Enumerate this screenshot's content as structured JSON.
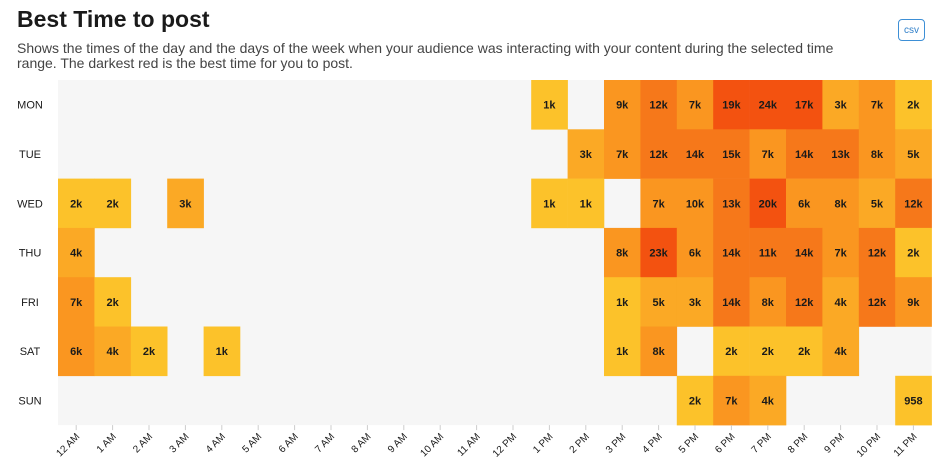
{
  "header": {
    "title": "Best Time to post",
    "subtitle": "Shows the times of the day and the days of the week when your audience was interacting with your content during the selected time range. The darkest red is the best time for you to post.",
    "csv_label": "csv"
  },
  "chart_data": {
    "type": "heatmap",
    "title": "Best Time to post",
    "rows": [
      "MON",
      "TUE",
      "WED",
      "THU",
      "FRI",
      "SAT",
      "SUN"
    ],
    "columns": [
      "12 AM",
      "1 AM",
      "2 AM",
      "3 AM",
      "4 AM",
      "5 AM",
      "6 AM",
      "7 AM",
      "8 AM",
      "9 AM",
      "10 AM",
      "11 AM",
      "12 PM",
      "1 PM",
      "2 PM",
      "3 PM",
      "4 PM",
      "5 PM",
      "6 PM",
      "7 PM",
      "8 PM",
      "9 PM",
      "10 PM",
      "11 PM"
    ],
    "cells": [
      [
        null,
        null,
        null,
        null,
        null,
        null,
        null,
        null,
        null,
        null,
        null,
        null,
        null,
        "1k",
        null,
        "9k",
        "12k",
        "7k",
        "19k",
        "24k",
        "17k",
        "3k",
        "7k",
        "2k"
      ],
      [
        null,
        null,
        null,
        null,
        null,
        null,
        null,
        null,
        null,
        null,
        null,
        null,
        null,
        null,
        "3k",
        "7k",
        "12k",
        "14k",
        "15k",
        "7k",
        "14k",
        "13k",
        "8k",
        "5k"
      ],
      [
        "2k",
        "2k",
        null,
        "3k",
        null,
        null,
        null,
        null,
        null,
        null,
        null,
        null,
        null,
        "1k",
        "1k",
        null,
        "7k",
        "10k",
        "13k",
        "20k",
        "6k",
        "8k",
        "5k",
        "12k"
      ],
      [
        "4k",
        null,
        null,
        null,
        null,
        null,
        null,
        null,
        null,
        null,
        null,
        null,
        null,
        null,
        null,
        "8k",
        "23k",
        "6k",
        "14k",
        "11k",
        "14k",
        "7k",
        "12k",
        "2k"
      ],
      [
        "7k",
        "2k",
        null,
        null,
        null,
        null,
        null,
        null,
        null,
        null,
        null,
        null,
        null,
        null,
        null,
        "1k",
        "5k",
        "3k",
        "14k",
        "8k",
        "12k",
        "4k",
        "12k",
        "9k"
      ],
      [
        "6k",
        "4k",
        "2k",
        null,
        "1k",
        null,
        null,
        null,
        null,
        null,
        null,
        null,
        null,
        null,
        null,
        "1k",
        "8k",
        null,
        "2k",
        "2k",
        "2k",
        "4k",
        null,
        null
      ],
      [
        null,
        null,
        null,
        null,
        null,
        null,
        null,
        null,
        null,
        null,
        null,
        null,
        null,
        null,
        null,
        null,
        null,
        "2k",
        "7k",
        "4k",
        null,
        null,
        null,
        "958"
      ]
    ],
    "values": [
      [
        null,
        null,
        null,
        null,
        null,
        null,
        null,
        null,
        null,
        null,
        null,
        null,
        null,
        1000,
        null,
        9000,
        12000,
        7000,
        19000,
        24000,
        17000,
        3000,
        7000,
        2000
      ],
      [
        null,
        null,
        null,
        null,
        null,
        null,
        null,
        null,
        null,
        null,
        null,
        null,
        null,
        null,
        3000,
        7000,
        12000,
        14000,
        15000,
        7000,
        14000,
        13000,
        8000,
        5000
      ],
      [
        2000,
        2000,
        null,
        3000,
        null,
        null,
        null,
        null,
        null,
        null,
        null,
        null,
        null,
        1000,
        1000,
        null,
        7000,
        10000,
        13000,
        20000,
        6000,
        8000,
        5000,
        12000
      ],
      [
        4000,
        null,
        null,
        null,
        null,
        null,
        null,
        null,
        null,
        null,
        null,
        null,
        null,
        null,
        null,
        8000,
        23000,
        6000,
        14000,
        11000,
        14000,
        7000,
        12000,
        2000
      ],
      [
        7000,
        2000,
        null,
        null,
        null,
        null,
        null,
        null,
        null,
        null,
        null,
        null,
        null,
        null,
        null,
        1000,
        5000,
        3000,
        14000,
        8000,
        12000,
        4000,
        12000,
        9000
      ],
      [
        6000,
        4000,
        2000,
        null,
        1000,
        null,
        null,
        null,
        null,
        null,
        null,
        null,
        null,
        null,
        null,
        1000,
        8000,
        null,
        2000,
        2000,
        2000,
        4000,
        null,
        null
      ],
      [
        null,
        null,
        null,
        null,
        null,
        null,
        null,
        null,
        null,
        null,
        null,
        null,
        null,
        null,
        null,
        null,
        null,
        2000,
        7000,
        4000,
        null,
        null,
        null,
        958
      ]
    ],
    "color_scale": {
      "empty": "#f6f6f6",
      "stops": [
        "#fdd42e",
        "#fcc22a",
        "#fba925",
        "#fa9620",
        "#f6781a",
        "#f35210"
      ]
    }
  }
}
